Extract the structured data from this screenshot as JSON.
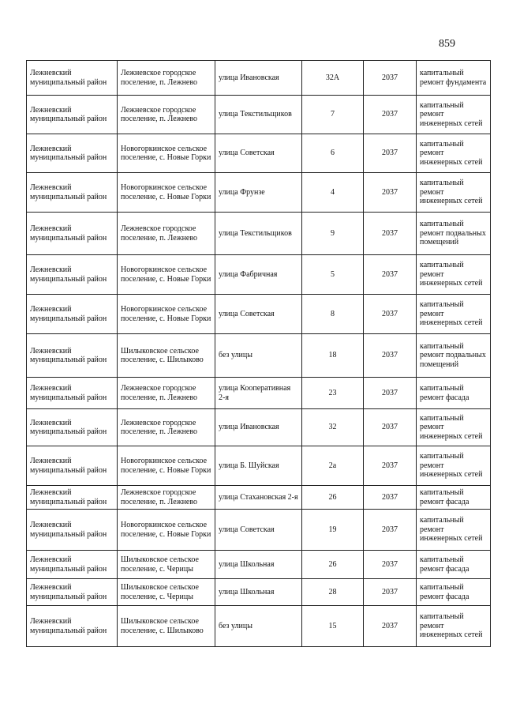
{
  "page_number": "859",
  "rows": [
    {
      "district": "Лежневский муниципальный район",
      "settlement": "Лежневское городское поселение, п. Лежнево",
      "street": "улица Ивановская",
      "house": "32А",
      "year": "2037",
      "work": "капитальный ремонт фундамента"
    },
    {
      "district": "Лежневский муниципальный район",
      "settlement": "Лежневское городское поселение, п. Лежнево",
      "street": "улица Текстильщиков",
      "house": "7",
      "year": "2037",
      "work": "капитальный ремонт инженерных сетей"
    },
    {
      "district": "Лежневский муниципальный район",
      "settlement": "Новогоркинское сельское поселение, с. Новые Горки",
      "street": "улица  Советская",
      "house": "6",
      "year": "2037",
      "work": "капитальный ремонт инженерных сетей"
    },
    {
      "district": "Лежневский муниципальный район",
      "settlement": "Новогоркинское сельское поселение, с. Новые Горки",
      "street": "улица Фрунзе",
      "house": "4",
      "year": "2037",
      "work": "капитальный ремонт инженерных сетей"
    },
    {
      "district": "Лежневский муниципальный район",
      "settlement": "Лежневское городское поселение, п. Лежнево",
      "street": "улица Текстильщиков",
      "house": "9",
      "year": "2037",
      "work": "капитальный ремонт подвальных помещений"
    },
    {
      "district": "Лежневский муниципальный район",
      "settlement": "Новогоркинское сельское поселение, с. Новые Горки",
      "street": "улица Фабричная",
      "house": "5",
      "year": "2037",
      "work": "капитальный ремонт инженерных сетей"
    },
    {
      "district": "Лежневский муниципальный район",
      "settlement": "Новогоркинское сельское поселение, с. Новые Горки",
      "street": "улица  Советская",
      "house": "8",
      "year": "2037",
      "work": "капитальный ремонт инженерных сетей"
    },
    {
      "district": "Лежневский муниципальный район",
      "settlement": "Шилыковское сельское поселение, с. Шилыково",
      "street": "без улицы",
      "house": "18",
      "year": "2037",
      "work": "капитальный ремонт подвальных помещений"
    },
    {
      "district": "Лежневский муниципальный район",
      "settlement": "Лежневское городское поселение, п. Лежнево",
      "street": "улица Кооперативная 2-я",
      "house": "23",
      "year": "2037",
      "work": "капитальный ремонт фасада"
    },
    {
      "district": "Лежневский муниципальный район",
      "settlement": "Лежневское городское поселение, п. Лежнево",
      "street": "улица Ивановская",
      "house": "32",
      "year": "2037",
      "work": "капитальный ремонт инженерных сетей"
    },
    {
      "district": "Лежневский муниципальный район",
      "settlement": "Новогоркинское сельское поселение, с. Новые Горки",
      "street": "улица Б. Шуйская",
      "house": "2а",
      "year": "2037",
      "work": "капитальный ремонт инженерных сетей"
    },
    {
      "district": "Лежневский муниципальный район",
      "settlement": "Лежневское городское поселение, п. Лежнево",
      "street": "улица Стахановская 2-я",
      "house": "26",
      "year": "2037",
      "work": "капитальный ремонт фасада"
    },
    {
      "district": "Лежневский муниципальный район",
      "settlement": "Новогоркинское сельское поселение, с. Новые Горки",
      "street": "улица  Советская",
      "house": "19",
      "year": "2037",
      "work": "капитальный ремонт инженерных сетей"
    },
    {
      "district": "Лежневский муниципальный район",
      "settlement": "Шилыковское сельское поселение, с. Черицы",
      "street": "улица  Школьная",
      "house": "26",
      "year": "2037",
      "work": "капитальный ремонт фасада"
    },
    {
      "district": "Лежневский муниципальный район",
      "settlement": "Шилыковское сельское поселение, с. Черицы",
      "street": "улица  Школьная",
      "house": "28",
      "year": "2037",
      "work": "капитальный ремонт фасада"
    },
    {
      "district": "Лежневский муниципальный район",
      "settlement": "Шилыковское сельское поселение, с. Шилыково",
      "street": "без улицы",
      "house": "15",
      "year": "2037",
      "work": "капитальный ремонт инженерных сетей"
    }
  ]
}
